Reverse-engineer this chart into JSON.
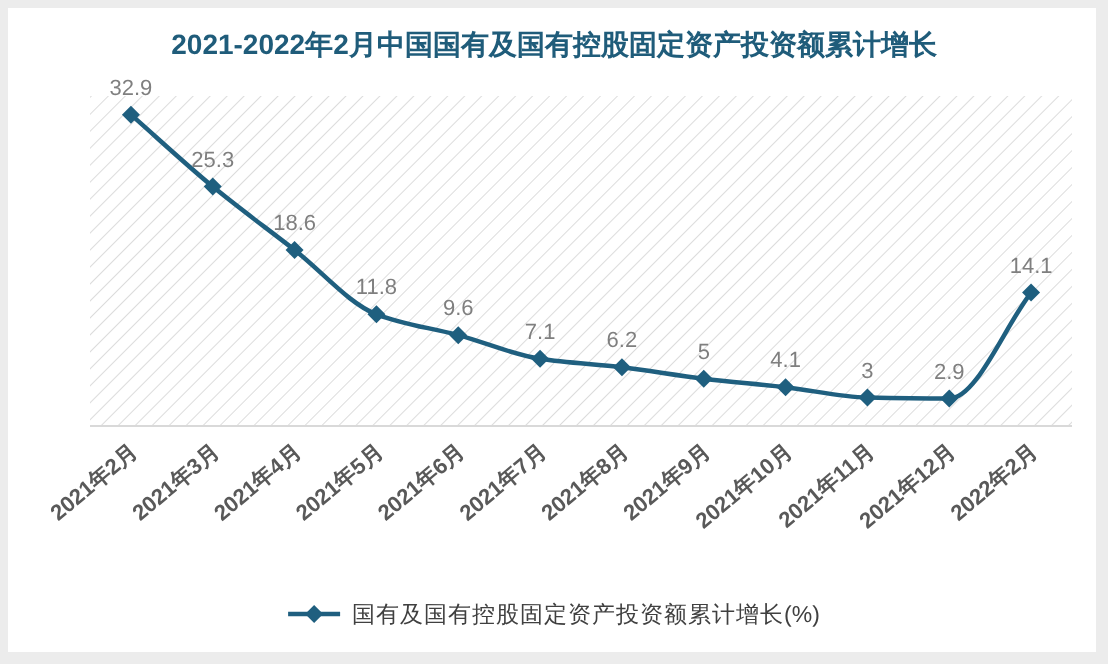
{
  "chart_data": {
    "type": "line",
    "title": "2021-2022年2月中国国有及国有控股固定资产投资额累计增长",
    "categories": [
      "2021年2月",
      "2021年3月",
      "2021年4月",
      "2021年5月",
      "2021年6月",
      "2021年7月",
      "2021年8月",
      "2021年9月",
      "2021年10月",
      "2021年11月",
      "2021年12月",
      "2022年2月"
    ],
    "series": [
      {
        "name": "国有及国有控股固定资产投资额累计增长(%)",
        "color": "#1f5f7f",
        "values": [
          32.9,
          25.3,
          18.6,
          11.8,
          9.6,
          7.1,
          6.2,
          5,
          4.1,
          3,
          2.9,
          14.1
        ]
      }
    ],
    "data_labels": true,
    "marker": "diamond",
    "line_style": "solid",
    "legend": "bottom",
    "grid": false
  }
}
